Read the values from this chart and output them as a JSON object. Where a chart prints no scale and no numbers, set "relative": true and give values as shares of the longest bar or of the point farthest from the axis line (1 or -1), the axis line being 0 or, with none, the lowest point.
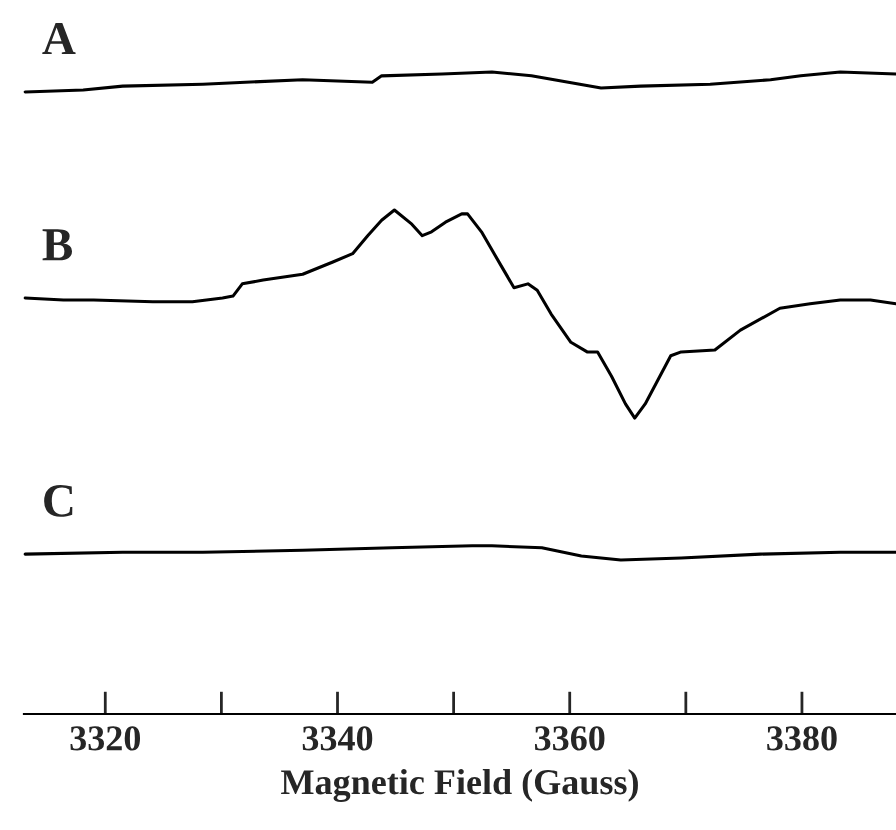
{
  "chart_data": {
    "type": "line",
    "relative": true,
    "xlabel": "Magnetic Field (Gauss)",
    "xlim": [
      3313,
      3388.1
    ],
    "xticks": [
      3320,
      {
        "value": 3330,
        "label": null
      },
      3340,
      {
        "value": 3350,
        "label": null
      },
      3360,
      {
        "value": 3370,
        "label": null
      },
      3380
    ],
    "grid": false,
    "legend": false,
    "marker": "none",
    "line_style": "solid",
    "tick_labels": "x",
    "series": [
      {
        "name": "A",
        "color": "#000000",
        "x": [
          3313.1,
          3318.1,
          3321.5,
          3328.4,
          3337.0,
          3343.0,
          3343.8,
          3349.0,
          3353.3,
          3356.7,
          3362.7,
          3366.1,
          3372.1,
          3377.3,
          3379.9,
          3383.3,
          3388.1
        ],
        "values": [
          0.969,
          0.972,
          0.978,
          0.981,
          0.988,
          0.984,
          0.994,
          0.997,
          1.0,
          0.994,
          0.975,
          0.978,
          0.981,
          0.988,
          0.994,
          1.0,
          0.997
        ]
      },
      {
        "name": "B",
        "color": "#000000",
        "x": [
          3313.1,
          3316.4,
          3319.0,
          3324.1,
          3327.5,
          3330.1,
          3331.0,
          3331.8,
          3333.6,
          3337.0,
          3339.6,
          3341.3,
          3342.6,
          3343.8,
          3344.9,
          3346.4,
          3347.3,
          3348.1,
          3349.3,
          3350.7,
          3351.2,
          3352.4,
          3354.1,
          3355.2,
          3356.4,
          3357.2,
          3358.4,
          3360.1,
          3361.5,
          3362.4,
          3363.6,
          3364.8,
          3365.6,
          3366.5,
          3368.7,
          3369.6,
          3372.5,
          3374.7,
          3378.1,
          3380.7,
          3383.3,
          3385.9,
          3388.1
        ],
        "values": [
          0.648,
          0.645,
          0.645,
          0.642,
          0.642,
          0.648,
          0.651,
          0.67,
          0.676,
          0.685,
          0.704,
          0.717,
          0.745,
          0.769,
          0.785,
          0.763,
          0.745,
          0.751,
          0.766,
          0.779,
          0.779,
          0.751,
          0.698,
          0.664,
          0.67,
          0.66,
          0.623,
          0.579,
          0.564,
          0.564,
          0.526,
          0.483,
          0.461,
          0.483,
          0.558,
          0.564,
          0.567,
          0.598,
          0.632,
          0.639,
          0.645,
          0.645,
          0.639
        ]
      },
      {
        "name": "C",
        "color": "#000000",
        "x": [
          3313.1,
          3321.5,
          3328.4,
          3337.0,
          3344.7,
          3351.6,
          3353.3,
          3357.6,
          3361.0,
          3364.4,
          3369.6,
          3376.4,
          3383.3,
          3388.1
        ],
        "values": [
          0.249,
          0.252,
          0.252,
          0.255,
          0.259,
          0.262,
          0.262,
          0.259,
          0.246,
          0.24,
          0.243,
          0.249,
          0.252,
          0.252
        ]
      }
    ]
  }
}
